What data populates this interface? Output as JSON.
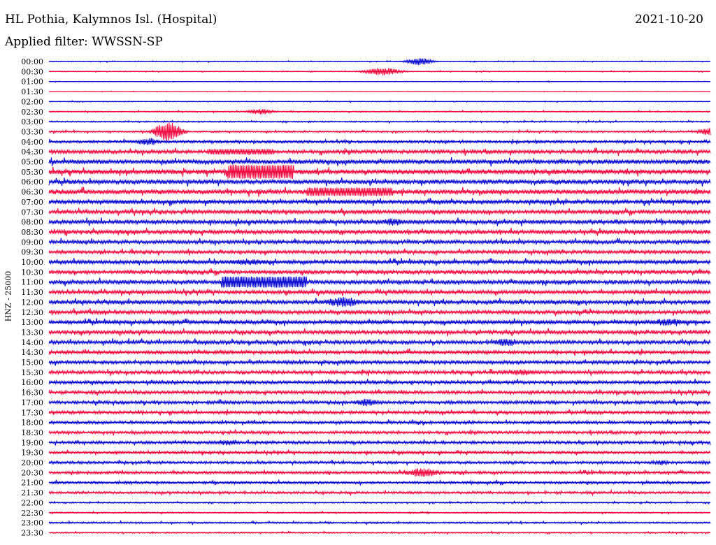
{
  "header": {
    "title": "HL Pothia, Kalymnos Isl. (Hospital)",
    "date": "2021-10-20",
    "filter": "Applied filter: WWSSN-SP"
  },
  "colors": {
    "trace_a": "#0000d0",
    "trace_b": "#f0003a"
  },
  "chart_data": {
    "type": "line",
    "title": "HL Pothia, Kalymnos Isl. (Hospital)",
    "ylabel": "HNZ - 25000",
    "rows": [
      "00:00",
      "00:30",
      "01:00",
      "01:30",
      "02:00",
      "02:30",
      "03:00",
      "03:30",
      "04:00",
      "04:30",
      "05:00",
      "05:30",
      "06:00",
      "06:30",
      "07:00",
      "07:30",
      "08:00",
      "08:30",
      "09:00",
      "09:30",
      "10:00",
      "10:30",
      "11:00",
      "11:30",
      "12:00",
      "12:30",
      "13:00",
      "13:30",
      "14:00",
      "14:30",
      "15:00",
      "15:30",
      "16:00",
      "16:30",
      "17:00",
      "17:30",
      "18:00",
      "18:30",
      "19:00",
      "19:30",
      "20:00",
      "20:30",
      "21:00",
      "21:30",
      "22:00",
      "22:30",
      "23:00",
      "23:30"
    ],
    "row_colors": [
      "blue",
      "red"
    ],
    "noise_levels": [
      0.5,
      0.5,
      0.4,
      0.3,
      0.5,
      0.7,
      0.8,
      1.0,
      1.6,
      2.2,
      2.6,
      2.8,
      2.6,
      2.8,
      2.4,
      2.3,
      2.4,
      2.4,
      2.2,
      2.0,
      2.2,
      2.2,
      2.4,
      2.2,
      2.4,
      2.2,
      2.2,
      2.2,
      2.2,
      2.0,
      2.0,
      2.0,
      1.9,
      1.9,
      1.9,
      1.8,
      1.7,
      1.7,
      1.7,
      1.6,
      1.6,
      1.6,
      1.5,
      1.4,
      0.8,
      0.8,
      1.0,
      0.8
    ],
    "bursts": [
      {
        "row": "00:00",
        "t": 0.55,
        "amp": 5,
        "dur": 0.02
      },
      {
        "row": "00:30",
        "t": 0.49,
        "amp": 5,
        "dur": 0.03
      },
      {
        "row": "02:30",
        "t": 0.31,
        "amp": 4,
        "dur": 0.02
      },
      {
        "row": "03:30",
        "t": 0.17,
        "amp": 14,
        "dur": 0.02
      },
      {
        "row": "03:30",
        "t": 0.99,
        "amp": 5,
        "dur": 0.02
      },
      {
        "row": "04:00",
        "t": 0.14,
        "amp": 5,
        "dur": 0.02
      },
      {
        "row": "04:30",
        "t": 0.24,
        "amp": 4,
        "dur": 0.1,
        "sat": true
      },
      {
        "row": "05:30",
        "t": 0.27,
        "amp": 10,
        "dur": 0.1,
        "sat": true
      },
      {
        "row": "06:30",
        "t": 0.39,
        "amp": 6,
        "dur": 0.13,
        "sat": true
      },
      {
        "row": "08:00",
        "t": 0.51,
        "amp": 5,
        "dur": 0.02
      },
      {
        "row": "10:00",
        "t": 0.28,
        "amp": 4,
        "dur": 0.04
      },
      {
        "row": "11:00",
        "t": 0.26,
        "amp": 8,
        "dur": 0.13,
        "sat": true
      },
      {
        "row": "12:00",
        "t": 0.43,
        "amp": 7,
        "dur": 0.03
      },
      {
        "row": "13:00",
        "t": 0.92,
        "amp": 5,
        "dur": 0.03
      },
      {
        "row": "14:00",
        "t": 0.68,
        "amp": 5,
        "dur": 0.02
      },
      {
        "row": "15:30",
        "t": 0.7,
        "amp": 4,
        "dur": 0.03
      },
      {
        "row": "17:00",
        "t": 0.47,
        "amp": 5,
        "dur": 0.02
      },
      {
        "row": "19:00",
        "t": 0.26,
        "amp": 4,
        "dur": 0.02
      },
      {
        "row": "20:00",
        "t": 0.92,
        "amp": 4,
        "dur": 0.01
      },
      {
        "row": "20:30",
        "t": 0.55,
        "amp": 6,
        "dur": 0.03
      }
    ]
  }
}
